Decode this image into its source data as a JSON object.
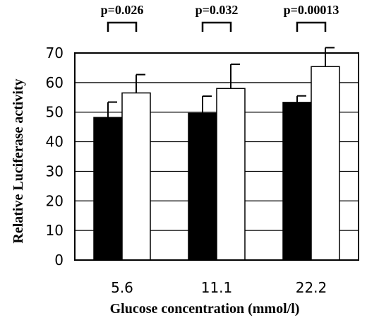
{
  "chart_data": {
    "type": "bar",
    "categories": [
      "5.6",
      "11.1",
      "22.2"
    ],
    "series": [
      {
        "values": [
          48.2,
          49.6,
          53.3
        ],
        "errors": [
          5.2,
          5.8,
          2.2
        ],
        "color": "#000000"
      },
      {
        "values": [
          56.5,
          58.0,
          65.4
        ],
        "errors": [
          6.2,
          8.2,
          6.4
        ],
        "color": "#ffffff"
      }
    ],
    "annotations": [
      "p=0.026",
      "p=0.032",
      "p=0.00013"
    ],
    "xlabel": "Glucose concentration (mmol/l)",
    "ylabel": "Relative Luciferase activity",
    "ylim": [
      0,
      70
    ],
    "yticks": [
      "0",
      "10",
      "20",
      "30",
      "40",
      "50",
      "60",
      "70"
    ],
    "grid": true
  }
}
